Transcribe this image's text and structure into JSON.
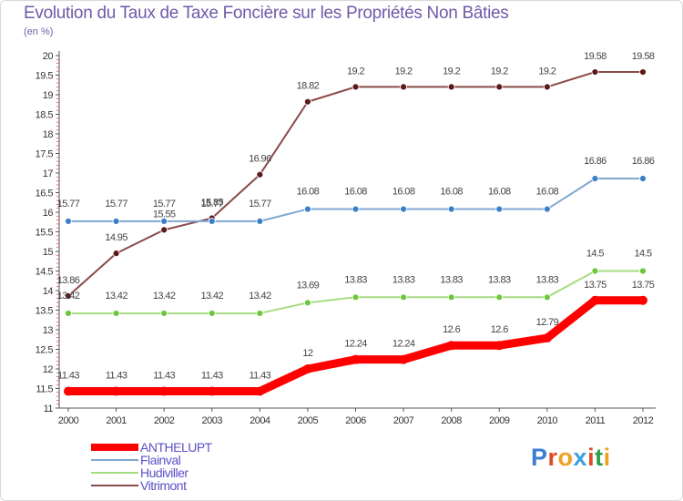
{
  "title": "Evolution du Taux de Taxe Foncière sur les Propriétés Non Bâties",
  "unit_label": "(en %)",
  "logo_text": "Proxiti",
  "chart_data": {
    "type": "line",
    "title": "Evolution du Taux de Taxe Foncière sur les Propriétés Non Bâties",
    "ylabel": "(en %)",
    "xlabel": "",
    "x": [
      "2000",
      "2001",
      "2002",
      "2003",
      "2004",
      "2005",
      "2006",
      "2007",
      "2008",
      "2009",
      "2010",
      "2011",
      "2012"
    ],
    "ylim": [
      11,
      20
    ],
    "yticks": [
      "11",
      "11.5",
      "12",
      "12.5",
      "13",
      "13.5",
      "14",
      "14.5",
      "15",
      "15.5",
      "16",
      "16.5",
      "17",
      "17.5",
      "18",
      "18.5",
      "19",
      "19.5",
      "20"
    ],
    "grid": false,
    "legend_position": "bottom-left",
    "series": [
      {
        "name": "ANTHELUPT",
        "color": "#ff0000",
        "highlight": true,
        "values": [
          11.43,
          11.43,
          11.43,
          11.43,
          11.43,
          12,
          12.24,
          12.24,
          12.6,
          12.6,
          12.79,
          13.75,
          13.75
        ],
        "labels": [
          "11.43",
          "11.43",
          "11.43",
          "11.43",
          "11.43",
          "12",
          "12.24",
          "12.24",
          "12.6",
          "12.6",
          "12.79",
          "13.75",
          "13.75"
        ]
      },
      {
        "name": "Flainval",
        "color": "#7fa8d0",
        "marker": "#3a80c8",
        "values": [
          15.77,
          15.77,
          15.77,
          15.77,
          15.77,
          16.08,
          16.08,
          16.08,
          16.08,
          16.08,
          16.08,
          16.86,
          16.86
        ],
        "labels": [
          "15.77",
          "15.77",
          "15.77",
          "15.77",
          "15.77",
          "16.08",
          "16.08",
          "16.08",
          "16.08",
          "16.08",
          "16.08",
          "16.86",
          "16.86"
        ]
      },
      {
        "name": "Hudiviller",
        "color": "#a6dc80",
        "marker": "#6cc83a",
        "values": [
          13.42,
          13.42,
          13.42,
          13.42,
          13.42,
          13.69,
          13.83,
          13.83,
          13.83,
          13.83,
          13.83,
          14.5,
          14.5
        ],
        "labels": [
          "13.42",
          "13.42",
          "13.42",
          "13.42",
          "13.42",
          "13.69",
          "13.83",
          "13.83",
          "13.83",
          "13.83",
          "13.83",
          "14.5",
          "14.5"
        ]
      },
      {
        "name": "Vitrimont",
        "color": "#8a4a4a",
        "marker": "#5a1a1a",
        "values": [
          13.86,
          14.95,
          15.55,
          15.85,
          16.96,
          18.82,
          19.2,
          19.2,
          19.2,
          19.2,
          19.2,
          19.58,
          19.58
        ],
        "labels": [
          "13.86",
          "14.95",
          "15.55",
          "15.85",
          "16.96",
          "18.82",
          "19.2",
          "19.2",
          "19.2",
          "19.2",
          "19.2",
          "19.58",
          "19.58"
        ]
      }
    ]
  }
}
